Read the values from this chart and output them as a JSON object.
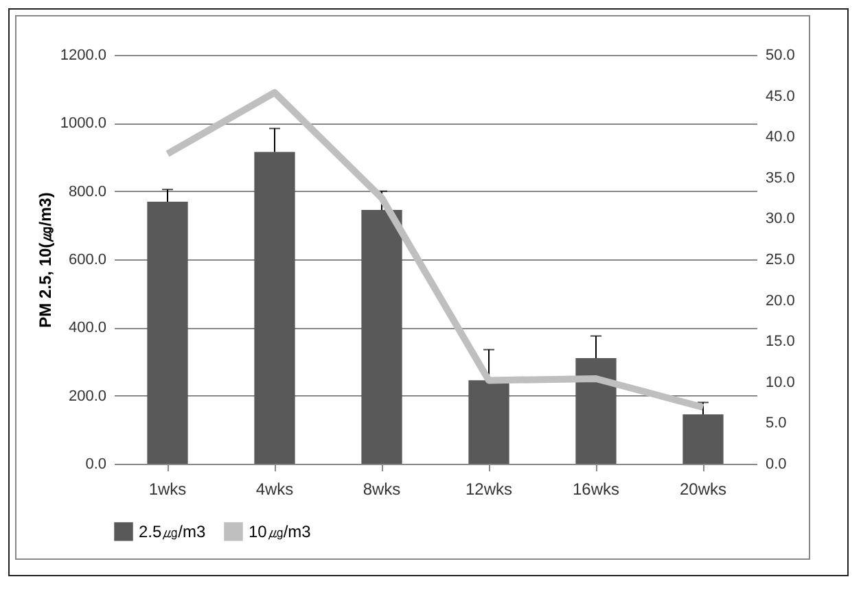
{
  "chart_data": {
    "type": "bar",
    "ylabel": "PM 2.5, 10(㎍/m3)",
    "categories": [
      "1wks",
      "4wks",
      "8wks",
      "12wks",
      "16wks",
      "20wks"
    ],
    "series": [
      {
        "name": "2.5㎍/m3",
        "color": "#595959",
        "values": [
          769,
          915,
          745,
          245,
          310,
          145
        ],
        "errors": [
          [
            769,
            805
          ],
          [
            915,
            984
          ],
          [
            745,
            800
          ],
          [
            245,
            335
          ],
          [
            310,
            375
          ],
          [
            145,
            180
          ]
        ]
      },
      {
        "name": "10㎍/m3",
        "type": "line",
        "axis": "y2",
        "color": "#bfbfbf",
        "values": [
          37.9,
          45.4,
          32.5,
          10.2,
          10.4,
          6.9
        ]
      }
    ],
    "ylim": [
      0,
      1200
    ],
    "yticks": [
      {
        "value": 0,
        "label": "0.0"
      },
      {
        "value": 200,
        "label": "200.0"
      },
      {
        "value": 400,
        "label": "400.0"
      },
      {
        "value": 600,
        "label": "600.0"
      },
      {
        "value": 800,
        "label": "800.0"
      },
      {
        "value": 1000,
        "label": "1000.0"
      },
      {
        "value": 1200,
        "label": "1200.0"
      }
    ],
    "y2lim": [
      0,
      50
    ],
    "y2ticks": [
      {
        "value": 0,
        "label": "0.0"
      },
      {
        "value": 5,
        "label": "5.0"
      },
      {
        "value": 10,
        "label": "10.0"
      },
      {
        "value": 15,
        "label": "15.0"
      },
      {
        "value": 20,
        "label": "20.0"
      },
      {
        "value": 25,
        "label": "25.0"
      },
      {
        "value": 30,
        "label": "30.0"
      },
      {
        "value": 35,
        "label": "35.0"
      },
      {
        "value": 40,
        "label": "40.0"
      },
      {
        "value": 45,
        "label": "45.0"
      },
      {
        "value": 50,
        "label": "50.0"
      }
    ],
    "grid": "y",
    "legend": "bottom",
    "marker": "none",
    "line_style": "solid"
  }
}
